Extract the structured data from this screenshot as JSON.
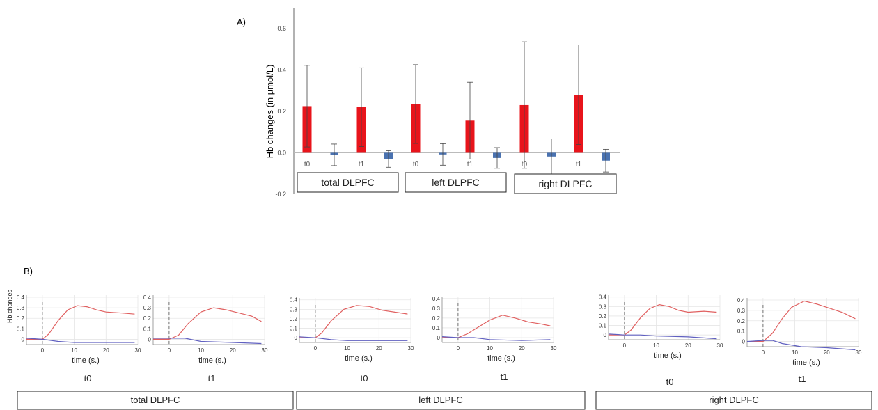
{
  "panel_a": {
    "label": "A)",
    "ylabel": "Hb changes (in µmol/L)",
    "yticks": [
      "0.6",
      "0.4",
      "0.2",
      "0.0",
      "-0.2"
    ],
    "ytick_values": [
      0.6,
      0.4,
      0.2,
      0.0,
      -0.2
    ],
    "group_boxes": [
      "total DLPFC",
      "left DLPFC",
      "right DLPFC"
    ]
  },
  "panel_b": {
    "label": "B)",
    "ylabel": "Hb changes",
    "xlabel": "time (s.)",
    "region_boxes": [
      "total DLPFC",
      "left DLPFC",
      "right DLPFC"
    ]
  },
  "colors": {
    "hbo": "#e8141b",
    "hbr": "#4a72b0",
    "hbo_line": "#e06060",
    "hbr_line": "#6060c0"
  },
  "chart_data": [
    {
      "type": "bar",
      "title": "",
      "ylabel": "Hb changes (in µmol/L)",
      "ylim": [
        -0.2,
        0.7
      ],
      "categories": [
        "t0",
        "",
        "t1",
        "",
        "t0",
        "",
        "t1",
        "",
        "t0",
        "",
        "t1",
        ""
      ],
      "groups": [
        "total DLPFC",
        "left DLPFC",
        "right DLPFC"
      ],
      "bars": [
        {
          "label": "t0",
          "group": "total DLPFC",
          "type": "HbO",
          "value": 0.225,
          "error": 0.197
        },
        {
          "label": "",
          "group": "total DLPFC",
          "type": "HbR",
          "value": -0.01,
          "error": 0.052
        },
        {
          "label": "t1",
          "group": "total DLPFC",
          "type": "HbO",
          "value": 0.22,
          "error": 0.19
        },
        {
          "label": "",
          "group": "total DLPFC",
          "type": "HbR",
          "value": -0.03,
          "error": 0.04
        },
        {
          "label": "t0",
          "group": "left DLPFC",
          "type": "HbO",
          "value": 0.235,
          "error": 0.19
        },
        {
          "label": "",
          "group": "left DLPFC",
          "type": "HbR",
          "value": -0.008,
          "error": 0.052
        },
        {
          "label": "t1",
          "group": "left DLPFC",
          "type": "HbO",
          "value": 0.155,
          "error": 0.185
        },
        {
          "label": "",
          "group": "left DLPFC",
          "type": "HbR",
          "value": -0.025,
          "error": 0.05
        },
        {
          "label": "t0",
          "group": "right DLPFC",
          "type": "HbO",
          "value": 0.23,
          "error": 0.305
        },
        {
          "label": "",
          "group": "right DLPFC",
          "type": "HbR",
          "value": -0.018,
          "error": 0.085
        },
        {
          "label": "t1",
          "group": "right DLPFC",
          "type": "HbO",
          "value": 0.28,
          "error": 0.24
        },
        {
          "label": "",
          "group": "right DLPFC",
          "type": "HbR",
          "value": -0.038,
          "error": 0.055
        }
      ]
    },
    {
      "type": "line",
      "xlabel": "time (s.)",
      "ylabel": "Hb changes",
      "xlim": [
        -5,
        30
      ],
      "xticks": [
        0,
        10,
        20,
        30
      ],
      "panels": [
        {
          "label": "t0",
          "region": "total DLPFC",
          "hbo": [
            [
              -5,
              0.0
            ],
            [
              0,
              0.0
            ],
            [
              2,
              0.05
            ],
            [
              5,
              0.18
            ],
            [
              8,
              0.28
            ],
            [
              11,
              0.32
            ],
            [
              14,
              0.31
            ],
            [
              17,
              0.28
            ],
            [
              20,
              0.26
            ],
            [
              25,
              0.25
            ],
            [
              29,
              0.24
            ]
          ],
          "hbr": [
            [
              -5,
              0.01
            ],
            [
              0,
              0.0
            ],
            [
              5,
              -0.02
            ],
            [
              10,
              -0.03
            ],
            [
              20,
              -0.03
            ],
            [
              29,
              -0.03
            ]
          ]
        },
        {
          "label": "t1",
          "region": "total DLPFC",
          "hbo": [
            [
              -5,
              0.0
            ],
            [
              0,
              0.0
            ],
            [
              3,
              0.04
            ],
            [
              6,
              0.15
            ],
            [
              10,
              0.26
            ],
            [
              14,
              0.3
            ],
            [
              18,
              0.28
            ],
            [
              22,
              0.25
            ],
            [
              26,
              0.22
            ],
            [
              29,
              0.17
            ]
          ],
          "hbr": [
            [
              -5,
              0.01
            ],
            [
              0,
              0.01
            ],
            [
              5,
              0.01
            ],
            [
              10,
              -0.02
            ],
            [
              20,
              -0.03
            ],
            [
              29,
              -0.04
            ]
          ]
        },
        {
          "label": "t0",
          "region": "left DLPFC",
          "hbo": [
            [
              -5,
              0.0
            ],
            [
              0,
              0.0
            ],
            [
              2,
              0.05
            ],
            [
              5,
              0.18
            ],
            [
              9,
              0.3
            ],
            [
              13,
              0.34
            ],
            [
              17,
              0.33
            ],
            [
              21,
              0.29
            ],
            [
              25,
              0.27
            ],
            [
              29,
              0.25
            ]
          ],
          "hbr": [
            [
              -5,
              0.01
            ],
            [
              0,
              0.0
            ],
            [
              5,
              -0.02
            ],
            [
              10,
              -0.03
            ],
            [
              20,
              -0.03
            ],
            [
              29,
              -0.03
            ]
          ]
        },
        {
          "label": "t1",
          "region": "left DLPFC",
          "hbo": [
            [
              -5,
              0.0
            ],
            [
              0,
              0.0
            ],
            [
              3,
              0.04
            ],
            [
              6,
              0.1
            ],
            [
              10,
              0.18
            ],
            [
              14,
              0.23
            ],
            [
              18,
              0.2
            ],
            [
              22,
              0.16
            ],
            [
              26,
              0.14
            ],
            [
              29,
              0.12
            ]
          ],
          "hbr": [
            [
              -5,
              0.01
            ],
            [
              0,
              0.0
            ],
            [
              5,
              0.0
            ],
            [
              10,
              -0.02
            ],
            [
              20,
              -0.03
            ],
            [
              29,
              -0.02
            ]
          ]
        },
        {
          "label": "t0",
          "region": "right DLPFC",
          "hbo": [
            [
              -5,
              0.0
            ],
            [
              0,
              0.0
            ],
            [
              2,
              0.05
            ],
            [
              5,
              0.18
            ],
            [
              8,
              0.28
            ],
            [
              11,
              0.32
            ],
            [
              14,
              0.3
            ],
            [
              17,
              0.26
            ],
            [
              20,
              0.24
            ],
            [
              25,
              0.25
            ],
            [
              29,
              0.24
            ]
          ],
          "hbr": [
            [
              -5,
              0.01
            ],
            [
              0,
              0.0
            ],
            [
              5,
              0.0
            ],
            [
              10,
              -0.01
            ],
            [
              20,
              -0.02
            ],
            [
              29,
              -0.04
            ]
          ]
        },
        {
          "label": "t1",
          "region": "right DLPFC",
          "hbo": [
            [
              -5,
              0.0
            ],
            [
              0,
              0.0
            ],
            [
              3,
              0.08
            ],
            [
              6,
              0.22
            ],
            [
              9,
              0.33
            ],
            [
              13,
              0.39
            ],
            [
              17,
              0.36
            ],
            [
              21,
              0.32
            ],
            [
              25,
              0.28
            ],
            [
              29,
              0.22
            ]
          ],
          "hbr": [
            [
              -5,
              0.0
            ],
            [
              0,
              0.01
            ],
            [
              3,
              0.01
            ],
            [
              6,
              -0.02
            ],
            [
              12,
              -0.05
            ],
            [
              20,
              -0.06
            ],
            [
              29,
              -0.08
            ]
          ]
        }
      ]
    }
  ]
}
